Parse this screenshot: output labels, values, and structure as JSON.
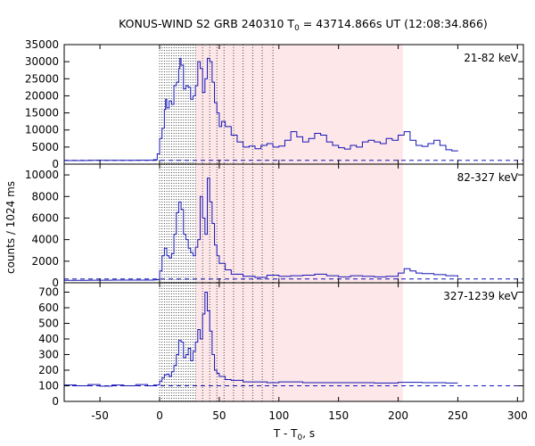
{
  "chart_data": {
    "type": "line",
    "title": {
      "pre": "KONUS-WIND S2 GRB 240310 T",
      "sub": "0",
      "post": " = 43714.866s UT (12:08:34.866)"
    },
    "xlabel": {
      "pre": "T - T",
      "sub": "0",
      "post": ", s"
    },
    "ylabel": "counts / 1024 ms",
    "xlim": [
      -80,
      305
    ],
    "xticks": [
      -50,
      0,
      50,
      100,
      150,
      200,
      250,
      300
    ],
    "interval_markers": [
      0,
      2,
      4,
      6,
      8,
      10,
      12,
      14,
      16,
      18,
      20,
      22,
      24,
      26,
      28,
      30,
      36,
      42,
      48,
      54,
      62,
      70,
      78,
      86,
      95
    ],
    "shaded_region": [
      30,
      204
    ],
    "series_color": "#1515b5",
    "shade_color": "#fde7e9",
    "panels": [
      {
        "band": "21-82 keV",
        "ylim": [
          0,
          35000
        ],
        "yticks": [
          0,
          5000,
          10000,
          15000,
          20000,
          25000,
          30000,
          35000
        ],
        "background": 1100,
        "points": [
          [
            -80,
            1050
          ],
          [
            -60,
            1100
          ],
          [
            -40,
            1120
          ],
          [
            -20,
            1150
          ],
          [
            -5,
            1300
          ],
          [
            -2,
            3000
          ],
          [
            0,
            7500
          ],
          [
            2,
            10500
          ],
          [
            4,
            16000
          ],
          [
            5,
            19000
          ],
          [
            6,
            16500
          ],
          [
            8,
            18500
          ],
          [
            10,
            17500
          ],
          [
            12,
            23000
          ],
          [
            14,
            24000
          ],
          [
            16,
            28000
          ],
          [
            17,
            31000
          ],
          [
            18,
            29000
          ],
          [
            20,
            22000
          ],
          [
            22,
            23000
          ],
          [
            24,
            22500
          ],
          [
            26,
            19000
          ],
          [
            28,
            20000
          ],
          [
            30,
            23000
          ],
          [
            32,
            30000
          ],
          [
            34,
            28000
          ],
          [
            36,
            21000
          ],
          [
            38,
            25000
          ],
          [
            40,
            31000
          ],
          [
            42,
            30000
          ],
          [
            44,
            24000
          ],
          [
            46,
            18000
          ],
          [
            48,
            15000
          ],
          [
            50,
            11000
          ],
          [
            52,
            12500
          ],
          [
            55,
            11000
          ],
          [
            60,
            8500
          ],
          [
            65,
            6500
          ],
          [
            70,
            5000
          ],
          [
            75,
            5300
          ],
          [
            80,
            4500
          ],
          [
            85,
            5500
          ],
          [
            90,
            6000
          ],
          [
            95,
            5000
          ],
          [
            100,
            5300
          ],
          [
            105,
            7000
          ],
          [
            110,
            9500
          ],
          [
            115,
            8000
          ],
          [
            120,
            6500
          ],
          [
            125,
            7500
          ],
          [
            130,
            9000
          ],
          [
            135,
            8500
          ],
          [
            140,
            6500
          ],
          [
            145,
            5500
          ],
          [
            150,
            4800
          ],
          [
            155,
            4400
          ],
          [
            160,
            5500
          ],
          [
            165,
            5000
          ],
          [
            170,
            6500
          ],
          [
            175,
            7000
          ],
          [
            180,
            6500
          ],
          [
            185,
            6000
          ],
          [
            190,
            7500
          ],
          [
            195,
            7000
          ],
          [
            200,
            8500
          ],
          [
            205,
            9500
          ],
          [
            210,
            7000
          ],
          [
            215,
            5500
          ],
          [
            220,
            5200
          ],
          [
            225,
            6000
          ],
          [
            230,
            7000
          ],
          [
            235,
            5500
          ],
          [
            240,
            4200
          ],
          [
            245,
            3900
          ],
          [
            250,
            3800
          ]
        ]
      },
      {
        "band": "82-327 keV",
        "ylim": [
          0,
          11000
        ],
        "yticks": [
          0,
          2000,
          4000,
          6000,
          8000,
          10000
        ],
        "background": 350,
        "points": [
          [
            -80,
            230
          ],
          [
            -60,
            240
          ],
          [
            -40,
            250
          ],
          [
            -20,
            250
          ],
          [
            -5,
            270
          ],
          [
            -2,
            300
          ],
          [
            0,
            1100
          ],
          [
            2,
            2500
          ],
          [
            4,
            3200
          ],
          [
            6,
            2500
          ],
          [
            8,
            2300
          ],
          [
            10,
            2700
          ],
          [
            12,
            4500
          ],
          [
            14,
            6500
          ],
          [
            16,
            7500
          ],
          [
            18,
            6800
          ],
          [
            20,
            4500
          ],
          [
            22,
            4000
          ],
          [
            24,
            3200
          ],
          [
            26,
            2800
          ],
          [
            28,
            2500
          ],
          [
            30,
            3300
          ],
          [
            32,
            4000
          ],
          [
            34,
            8000
          ],
          [
            36,
            6000
          ],
          [
            38,
            4500
          ],
          [
            40,
            9700
          ],
          [
            42,
            7500
          ],
          [
            44,
            5500
          ],
          [
            46,
            3500
          ],
          [
            48,
            2500
          ],
          [
            50,
            1800
          ],
          [
            55,
            1200
          ],
          [
            60,
            800
          ],
          [
            70,
            600
          ],
          [
            80,
            500
          ],
          [
            90,
            700
          ],
          [
            100,
            600
          ],
          [
            110,
            650
          ],
          [
            120,
            700
          ],
          [
            130,
            800
          ],
          [
            140,
            650
          ],
          [
            150,
            550
          ],
          [
            160,
            650
          ],
          [
            170,
            600
          ],
          [
            180,
            550
          ],
          [
            190,
            600
          ],
          [
            200,
            900
          ],
          [
            205,
            1300
          ],
          [
            210,
            1100
          ],
          [
            215,
            900
          ],
          [
            220,
            850
          ],
          [
            230,
            750
          ],
          [
            240,
            650
          ],
          [
            250,
            500
          ]
        ]
      },
      {
        "band": "327-1239 keV",
        "ylim": [
          0,
          760
        ],
        "yticks": [
          0,
          100,
          200,
          300,
          400,
          500,
          600,
          700
        ],
        "background": 100,
        "points": [
          [
            -80,
            105
          ],
          [
            -70,
            100
          ],
          [
            -60,
            108
          ],
          [
            -50,
            98
          ],
          [
            -40,
            105
          ],
          [
            -30,
            100
          ],
          [
            -20,
            108
          ],
          [
            -10,
            100
          ],
          [
            -5,
            105
          ],
          [
            0,
            130
          ],
          [
            2,
            150
          ],
          [
            4,
            170
          ],
          [
            6,
            175
          ],
          [
            8,
            160
          ],
          [
            10,
            190
          ],
          [
            12,
            230
          ],
          [
            14,
            300
          ],
          [
            16,
            390
          ],
          [
            18,
            380
          ],
          [
            20,
            280
          ],
          [
            22,
            300
          ],
          [
            24,
            340
          ],
          [
            26,
            260
          ],
          [
            28,
            320
          ],
          [
            30,
            380
          ],
          [
            32,
            460
          ],
          [
            34,
            400
          ],
          [
            36,
            560
          ],
          [
            38,
            700
          ],
          [
            40,
            580
          ],
          [
            42,
            450
          ],
          [
            44,
            300
          ],
          [
            46,
            200
          ],
          [
            48,
            180
          ],
          [
            50,
            160
          ],
          [
            55,
            140
          ],
          [
            60,
            135
          ],
          [
            70,
            125
          ],
          [
            80,
            125
          ],
          [
            90,
            120
          ],
          [
            100,
            125
          ],
          [
            120,
            120
          ],
          [
            140,
            120
          ],
          [
            160,
            120
          ],
          [
            180,
            118
          ],
          [
            200,
            122
          ],
          [
            220,
            120
          ],
          [
            240,
            118
          ],
          [
            250,
            118
          ]
        ]
      }
    ]
  }
}
